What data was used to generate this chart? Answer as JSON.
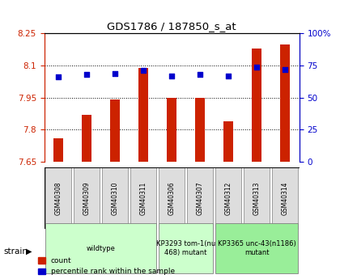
{
  "title": "GDS1786 / 187850_s_at",
  "samples": [
    "GSM40308",
    "GSM40309",
    "GSM40310",
    "GSM40311",
    "GSM40306",
    "GSM40307",
    "GSM40312",
    "GSM40313",
    "GSM40314"
  ],
  "count_values": [
    7.76,
    7.87,
    7.94,
    8.09,
    7.95,
    7.95,
    7.84,
    8.18,
    8.2
  ],
  "percentile_values": [
    66,
    68,
    69,
    71,
    67,
    68,
    67,
    74,
    72
  ],
  "ylim_left": [
    7.65,
    8.25
  ],
  "ylim_right": [
    0,
    100
  ],
  "yticks_left": [
    7.65,
    7.8,
    7.95,
    8.1,
    8.25
  ],
  "yticks_left_labels": [
    "7.65",
    "7.8",
    "7.95",
    "8.1",
    "8.25"
  ],
  "yticks_right": [
    0,
    25,
    50,
    75,
    100
  ],
  "yticks_right_labels": [
    "0",
    "25",
    "50",
    "75",
    "100%"
  ],
  "bar_color": "#cc2200",
  "dot_color": "#0000cc",
  "left_axis_color": "#cc2200",
  "right_axis_color": "#0000cc",
  "grid_color": "#000000",
  "bar_bottom": 7.65,
  "legend_count_label": "count",
  "legend_percentile_label": "percentile rank within the sample",
  "strain_groups": [
    {
      "label": "wildtype",
      "start": 0,
      "end": 3,
      "color": "#ccffcc"
    },
    {
      "label": "KP3293 tom-1(nu\n468) mutant",
      "start": 4,
      "end": 5,
      "color": "#ccffcc"
    },
    {
      "label": "KP3365 unc-43(n1186)\nmutant",
      "start": 6,
      "end": 8,
      "color": "#99ee99"
    }
  ]
}
